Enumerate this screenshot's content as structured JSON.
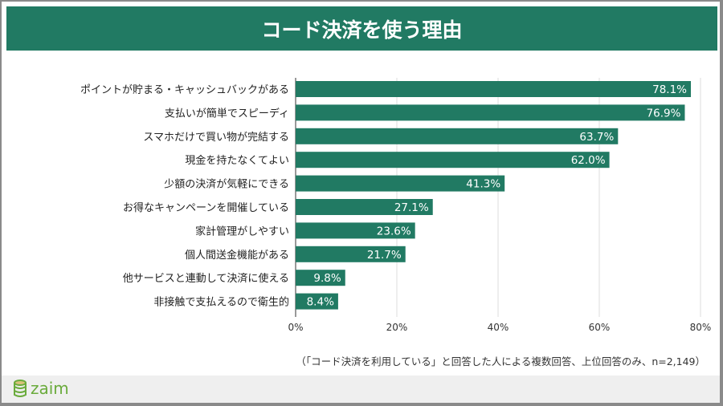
{
  "title": "コード決済を使う理由",
  "note": "（「コード決済を利用している」と回答した人による複数回答、上位回答のみ、n=2,149）",
  "logo": "zaim",
  "chart_data": {
    "type": "bar",
    "orientation": "horizontal",
    "title": "コード決済を使う理由",
    "categories": [
      "ポイントが貯まる・キャッシュバックがある",
      "支払いが簡単でスピーディ",
      "スマホだけで買い物が完結する",
      "現金を持たなくてよい",
      "少額の決済が気軽にできる",
      "お得なキャンペーンを開催している",
      "家計管理がしやすい",
      "個人間送金機能がある",
      "他サービスと連動して決済に使える",
      "非接触で支払えるので衛生的"
    ],
    "values": [
      78.1,
      76.9,
      63.7,
      62.0,
      41.3,
      27.1,
      23.6,
      21.7,
      9.8,
      8.4
    ],
    "data_labels": [
      "78.1%",
      "76.9%",
      "63.7%",
      "62.0%",
      "41.3%",
      "27.1%",
      "23.6%",
      "21.7%",
      "9.8%",
      "8.4%"
    ],
    "xlim": [
      0,
      80
    ],
    "x_ticks": [
      "0%",
      "20%",
      "40%",
      "60%",
      "80%"
    ],
    "grid": true,
    "bar_color": "#217a63"
  }
}
